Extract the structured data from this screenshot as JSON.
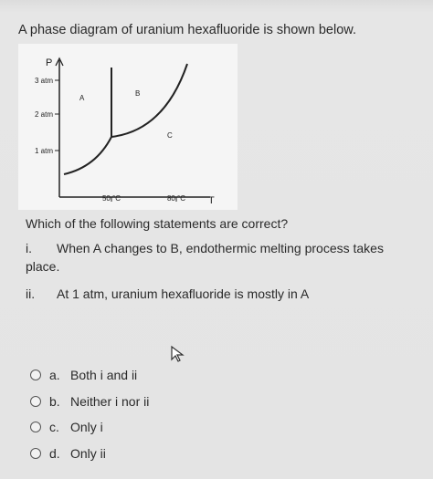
{
  "question": {
    "intro": "A phase diagram of uranium hexafluoride is shown below.",
    "diagram": {
      "y_axis_label": "P",
      "x_axis_label": "T",
      "y_ticks": [
        "3 atm",
        "2 atm",
        "1 atm"
      ],
      "x_ticks": [
        "50 °C",
        "80 °C"
      ],
      "regions": [
        "A",
        "B",
        "C"
      ]
    },
    "prompt": "Which of the following statements are correct?",
    "statements": [
      {
        "number": "i.",
        "text": "When A changes to B, endothermic melting process takes",
        "continuation": "place."
      },
      {
        "number": "ii.",
        "text": "At 1 atm, uranium hexafluoride is mostly in A"
      }
    ],
    "options": [
      {
        "letter": "a.",
        "text": "Both i and ii"
      },
      {
        "letter": "b.",
        "text": "Neither i nor ii"
      },
      {
        "letter": "c.",
        "text": "Only i"
      },
      {
        "letter": "d.",
        "text": "Only ii"
      }
    ]
  }
}
